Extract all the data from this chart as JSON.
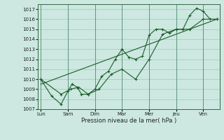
{
  "xlabel": "Pression niveau de la mer( hPa )",
  "background_color": "#cce8e0",
  "plot_bg_color": "#cce8e0",
  "grid_color": "#99ccbb",
  "line_color": "#1a5c28",
  "ylim": [
    1007,
    1017.5
  ],
  "yticks": [
    1007,
    1008,
    1009,
    1010,
    1011,
    1012,
    1013,
    1014,
    1015,
    1016,
    1017
  ],
  "day_labels": [
    "Lun",
    "Sam",
    "Dim",
    "Mar",
    "Mer",
    "Jeu",
    "Ven"
  ],
  "day_positions": [
    0,
    2,
    4,
    6,
    8,
    10,
    12
  ],
  "xlim": [
    -0.2,
    13.2
  ],
  "series1_x": [
    0,
    0.8,
    1.5,
    2.0,
    2.3,
    2.7,
    3.0,
    3.5,
    4.0,
    4.5,
    5.0,
    5.5,
    6.0,
    6.5,
    7.0,
    7.5,
    8.0,
    8.5,
    9.0,
    9.5,
    10.0,
    10.5,
    11.0,
    11.5,
    12.0,
    12.5,
    13.0
  ],
  "series1_y": [
    1010.0,
    1008.3,
    1007.5,
    1008.8,
    1009.5,
    1009.2,
    1008.5,
    1008.5,
    1009.0,
    1010.3,
    1010.8,
    1012.0,
    1013.0,
    1012.2,
    1012.0,
    1012.3,
    1014.4,
    1015.0,
    1015.0,
    1014.6,
    1015.0,
    1015.0,
    1016.4,
    1017.1,
    1016.8,
    1016.0,
    1016.0
  ],
  "series2_x": [
    0,
    1.5,
    2.2,
    2.8,
    3.5,
    4.3,
    5.2,
    6.0,
    7.0,
    8.0,
    9.0,
    10.0,
    11.0,
    12.0,
    13.0
  ],
  "series2_y": [
    1010.0,
    1008.5,
    1009.0,
    1009.2,
    1008.5,
    1009.0,
    1010.5,
    1011.0,
    1010.0,
    1012.0,
    1014.5,
    1015.0,
    1015.0,
    1016.0,
    1016.0
  ],
  "trend_x": [
    0,
    13.0
  ],
  "trend_y": [
    1009.5,
    1016.0
  ]
}
